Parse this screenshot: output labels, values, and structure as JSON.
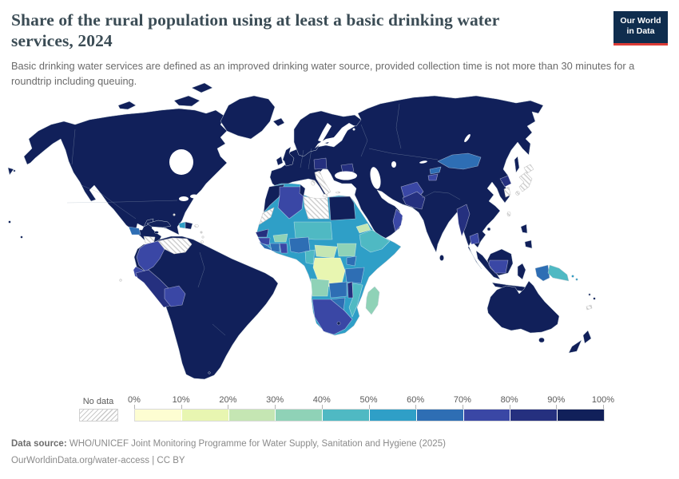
{
  "header": {
    "title": "Share of the rural population using at least a basic drinking water services, 2024",
    "subtitle": "Basic drinking water services are defined as an improved drinking water source, provided collection time is not more than 30 minutes for a roundtrip including queuing.",
    "logo": {
      "line1": "Our World",
      "line2": "in Data",
      "bg": "#0f2d4e",
      "accent": "#dc3b36"
    }
  },
  "legend": {
    "no_data_label": "No data",
    "ticks": [
      "0%",
      "10%",
      "20%",
      "30%",
      "40%",
      "50%",
      "60%",
      "70%",
      "80%",
      "90%",
      "100%"
    ]
  },
  "footer": {
    "source_label": "Data source:",
    "source_text": " WHO/UNICEF Joint Monitoring Programme for Water Supply, Sanitation and Hygiene (2025)",
    "link": "OurWorldinData.org/water-access",
    "separator": " | ",
    "license": "CC BY"
  },
  "map": {
    "ocean": "#ffffff",
    "coastline": "#c3ced6",
    "palette": {
      "0-10": "#fdfdd2",
      "10-20": "#e8f6b1",
      "20-30": "#c5e6b3",
      "30-40": "#8fd2b7",
      "40-50": "#4fb9c3",
      "50-60": "#2f9fc7",
      "60-70": "#2e6eb4",
      "70-80": "#3a47a5",
      "80-90": "#25307f",
      "90-100": "#11205a",
      "no-data": "hatch"
    }
  },
  "chart_data": {
    "type": "choropleth",
    "title": "Share of the rural population using at least a basic drinking water services, 2024",
    "unit": "%",
    "legend_bins": [
      "0-10",
      "10-20",
      "20-30",
      "30-40",
      "40-50",
      "50-60",
      "60-70",
      "70-80",
      "80-90",
      "90-100"
    ],
    "no_data_label": "No data",
    "regions": {
      "north_america": "90-100",
      "victoria_island": "90-100",
      "baffin_island": "90-100",
      "ellesmere_island": "90-100",
      "greenland": "90-100",
      "iceland": "90-100",
      "aleutian_islands": "90-100",
      "hawaii": "90-100",
      "chukotka_fragment": "90-100",
      "pacific_speck": "90-100",
      "guatemala": "60-70",
      "nicaragua": "no-data",
      "cuba": "90-100",
      "jamaica": "90-100",
      "haiti": "50-60",
      "dominican_republic": "90-100",
      "puerto_rico": "no-data",
      "bahamas": "no-data",
      "lesser_antilles_1": "no-data",
      "lesser_antilles_2": "no-data",
      "trinidad_and_tobago": "no-data",
      "galapagos": "no-data",
      "south_america": "90-100",
      "venezuela": "no-data",
      "colombia": "70-80",
      "ecuador": "70-80",
      "peru": "80-90",
      "bolivia": "70-80",
      "falkland_islands": "90-100",
      "eurasia": "90-100",
      "scandinavia": "90-100",
      "united_kingdom": "90-100",
      "ireland": "90-100",
      "italy": "no-data",
      "sardinia": "no-data",
      "sicily": "no-data",
      "crete": "no-data",
      "poland": "80-90",
      "romania": "80-90",
      "mongolia": "60-70",
      "kyrgyzstan": "60-70",
      "tajikistan": "70-80",
      "afghanistan": "70-80",
      "pakistan": "80-90",
      "oman": "70-80",
      "myanmar": "80-90",
      "cambodia": "70-80",
      "north_korea": "80-90",
      "south_korea": "no-data",
      "japan_hokkaido": "no-data",
      "japan_honshu": "no-data",
      "japan_kyushu": "no-data",
      "taiwan": "no-data",
      "sakhalin": "90-100",
      "hainan": "90-100",
      "sri_lanka": "90-100",
      "africa": "50-60",
      "morocco": "90-100",
      "western_sahara": "no-data",
      "algeria": "70-80",
      "tunisia": "90-100",
      "libya": "no-data",
      "egypt": "90-100",
      "niger_chad": "40-50",
      "eritrea": "20-30",
      "ethiopia": "40-50",
      "senegal": "80-90",
      "guinea": "70-80",
      "sierra_leone_liberia": "60-70",
      "cote_divoire": "60-70",
      "ghana": "70-80",
      "burkina_faso": "30-40",
      "nigeria": "60-70",
      "cameroon": "40-50",
      "central_african_republic": "20-30",
      "south_sudan": "30-40",
      "dr_congo": "10-20",
      "uganda": "60-70",
      "tanzania": "60-70",
      "angola": "30-40",
      "zambia": "60-70",
      "malawi": "80-90",
      "mozambique": "40-50",
      "zimbabwe": "60-70",
      "southern_africa": "70-80",
      "lesotho": "90-100",
      "madagascar": "30-40",
      "sumatra": "90-100",
      "java": "90-100",
      "borneo": "90-100",
      "kalimantan": "70-80",
      "sulawesi": "90-100",
      "philippines_luzon": "90-100",
      "philippines_mindanao": "90-100",
      "west_papua": "60-70",
      "papua_new_guinea": "40-50",
      "solomon_islands": "50-60",
      "australia": "90-100",
      "tasmania": "90-100",
      "new_zealand_north": "90-100",
      "new_zealand_south": "90-100",
      "fiji": "90-100",
      "vanuatu": "90-100",
      "new_caledonia": "no-data"
    }
  }
}
